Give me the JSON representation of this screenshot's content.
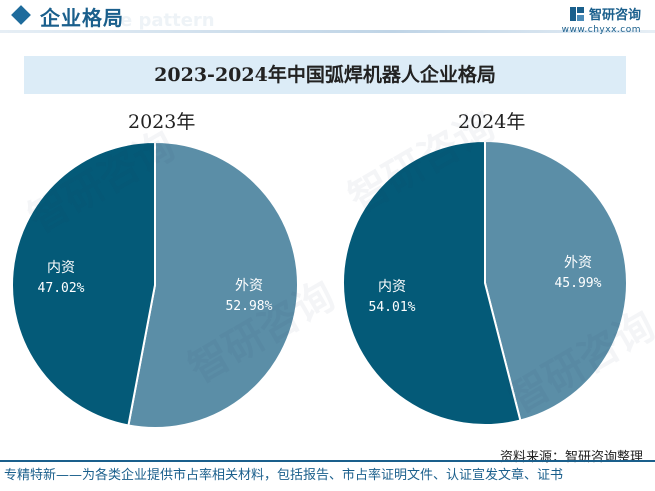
{
  "header": {
    "title": "企业格局",
    "ghost_text": "e pattern",
    "brand_name": "智研咨询",
    "brand_url": "www.chyxx.com"
  },
  "chart_title": "2023-2024年中国弧焊机器人企业格局",
  "source": "资料来源：智研咨询整理",
  "footer_note": "专精特新——为各类企业提供市占率相关材料，包括报告、市占率证明文件、认证宣发文章、证书",
  "watermark_text": "智研咨询",
  "colors": {
    "domestic": "#045a78",
    "foreign": "#5b8ea7",
    "brand": "#1a5f8c",
    "title_band": "#dcecf7"
  },
  "chart_data": [
    {
      "type": "pie",
      "title": "2023年",
      "slices": [
        {
          "label": "外资",
          "value": 52.98,
          "display": "52.98%"
        },
        {
          "label": "内资",
          "value": 47.02,
          "display": "47.02%"
        }
      ]
    },
    {
      "type": "pie",
      "title": "2024年",
      "slices": [
        {
          "label": "外资",
          "value": 45.99,
          "display": "45.99%"
        },
        {
          "label": "内资",
          "value": 54.01,
          "display": "54.01%"
        }
      ]
    }
  ]
}
